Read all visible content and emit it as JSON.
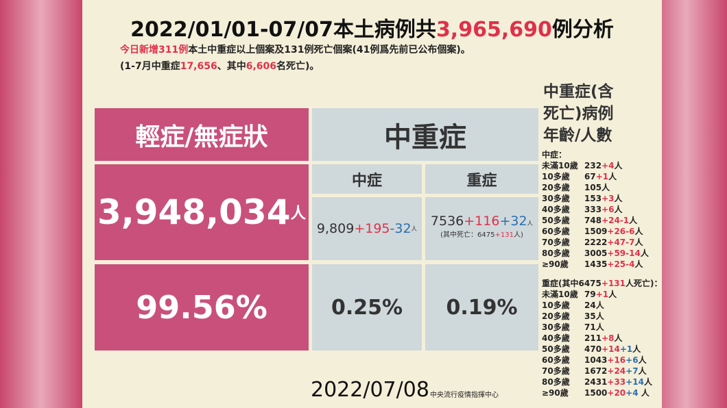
{
  "header": {
    "title": [
      {
        "t": "2022/01/01-07/07本土病例共"
      },
      {
        "t": "3,965,690",
        "c": "#e0304a"
      },
      {
        "t": "例分析"
      }
    ],
    "notes": [
      [
        {
          "t": "今日新增311例",
          "c": "#e0304a"
        },
        {
          "t": "本土中重症以上個案及131例死亡個案(41例爲先前已公布個案)。"
        }
      ],
      [
        {
          "t": "(1-7月中重症"
        },
        {
          "t": "17,656",
          "c": "#e0304a"
        },
        {
          "t": "、其中"
        },
        {
          "t": "6,606",
          "c": "#e0304a"
        },
        {
          "t": "名死亡)。"
        }
      ]
    ]
  },
  "table": {
    "mild_header": "輕症/無症狀",
    "severe_header": "中重症",
    "moderate_sub": "中症",
    "critical_sub": "重症",
    "mild_count": [
      {
        "t": "3,948,034"
      },
      {
        "t": "人",
        "s": "small"
      }
    ],
    "moderate_count": [
      {
        "t": "9,809"
      },
      {
        "t": "+195",
        "c": "#e0304a"
      },
      {
        "t": "-32",
        "c": "#2a6fb0"
      },
      {
        "t": "人",
        "s": "small"
      }
    ],
    "critical_count": [
      {
        "t": "7536"
      },
      {
        "t": "+116",
        "c": "#e0304a"
      },
      {
        "t": "+32",
        "c": "#2a6fb0"
      },
      {
        "t": "人",
        "s": "small"
      }
    ],
    "critical_note": [
      {
        "t": "(其中死亡：6475"
      },
      {
        "t": "+131",
        "c": "#e0304a"
      },
      {
        "t": "人)"
      }
    ],
    "mild_pct": "99.56%",
    "moderate_pct": "0.25%",
    "critical_pct": "0.19%"
  },
  "side": {
    "heading": [
      "中重症(含",
      "死亡)病例",
      "年齡/人數"
    ],
    "moderate_label": [
      {
        "t": "中症："
      }
    ],
    "moderate": [
      {
        "age": "未滿10歲",
        "runs": [
          {
            "t": "232"
          },
          {
            "t": "+4",
            "c": "#e0304a"
          },
          {
            "t": "人"
          }
        ]
      },
      {
        "age": "10多歲",
        "runs": [
          {
            "t": "67"
          },
          {
            "t": "+1",
            "c": "#e0304a"
          },
          {
            "t": "人"
          }
        ]
      },
      {
        "age": "20多歲",
        "runs": [
          {
            "t": "105"
          },
          {
            "t": "人"
          }
        ]
      },
      {
        "age": "30多歲",
        "runs": [
          {
            "t": "153"
          },
          {
            "t": "+3",
            "c": "#e0304a"
          },
          {
            "t": "人"
          }
        ]
      },
      {
        "age": "40多歲",
        "runs": [
          {
            "t": "333"
          },
          {
            "t": "+6",
            "c": "#e0304a"
          },
          {
            "t": "人"
          }
        ]
      },
      {
        "age": "50多歲",
        "runs": [
          {
            "t": "748"
          },
          {
            "t": "+24-1",
            "c": "#e0304a"
          },
          {
            "t": "人"
          }
        ]
      },
      {
        "age": "60多歲",
        "runs": [
          {
            "t": "1509"
          },
          {
            "t": "+26-6",
            "c": "#e0304a"
          },
          {
            "t": "人"
          }
        ]
      },
      {
        "age": "70多歲",
        "runs": [
          {
            "t": "2222"
          },
          {
            "t": "+47-7",
            "c": "#e0304a"
          },
          {
            "t": "人"
          }
        ]
      },
      {
        "age": "80多歲",
        "runs": [
          {
            "t": "3005"
          },
          {
            "t": "+59-14",
            "c": "#e0304a"
          },
          {
            "t": "人"
          }
        ]
      },
      {
        "age": "≥90歲",
        "runs": [
          {
            "t": "1435"
          },
          {
            "t": "+25-4",
            "c": "#e0304a"
          },
          {
            "t": "人"
          }
        ]
      }
    ],
    "critical_label": [
      {
        "t": "重症(其中6475"
      },
      {
        "t": "+131",
        "c": "#e0304a"
      },
      {
        "t": "人死亡)："
      }
    ],
    "critical": [
      {
        "age": "未滿10歲",
        "runs": [
          {
            "t": "79"
          },
          {
            "t": "+1",
            "c": "#e0304a"
          },
          {
            "t": "人"
          }
        ]
      },
      {
        "age": "10多歲",
        "runs": [
          {
            "t": "24人"
          }
        ]
      },
      {
        "age": "20多歲",
        "runs": [
          {
            "t": "35人"
          }
        ]
      },
      {
        "age": "30多歲",
        "runs": [
          {
            "t": "71人"
          }
        ]
      },
      {
        "age": "40多歲",
        "runs": [
          {
            "t": "211"
          },
          {
            "t": "+8",
            "c": "#e0304a"
          },
          {
            "t": "人"
          }
        ]
      },
      {
        "age": "50多歲",
        "runs": [
          {
            "t": "470"
          },
          {
            "t": "+14",
            "c": "#e0304a"
          },
          {
            "t": "+1",
            "c": "#2a6fb0"
          },
          {
            "t": "人"
          }
        ]
      },
      {
        "age": "60多歲",
        "runs": [
          {
            "t": "1043"
          },
          {
            "t": "+16",
            "c": "#e0304a"
          },
          {
            "t": "+6",
            "c": "#2a6fb0"
          },
          {
            "t": "人"
          }
        ]
      },
      {
        "age": "70多歲",
        "runs": [
          {
            "t": "1672"
          },
          {
            "t": "+24",
            "c": "#e0304a"
          },
          {
            "t": "+7",
            "c": "#2a6fb0"
          },
          {
            "t": "人"
          }
        ]
      },
      {
        "age": "80多歲",
        "runs": [
          {
            "t": "2431"
          },
          {
            "t": "+33",
            "c": "#e0304a"
          },
          {
            "t": "+14",
            "c": "#2a6fb0"
          },
          {
            "t": "人"
          }
        ]
      },
      {
        "age": "≥90歲",
        "runs": [
          {
            "t": "1500"
          },
          {
            "t": "+20",
            "c": "#e0304a"
          },
          {
            "t": "+4",
            "c": "#2a6fb0"
          },
          {
            "t": " 人"
          }
        ]
      }
    ]
  },
  "footer": {
    "date": "2022/07/08",
    "source": "中央流行疫情指揮中心"
  }
}
